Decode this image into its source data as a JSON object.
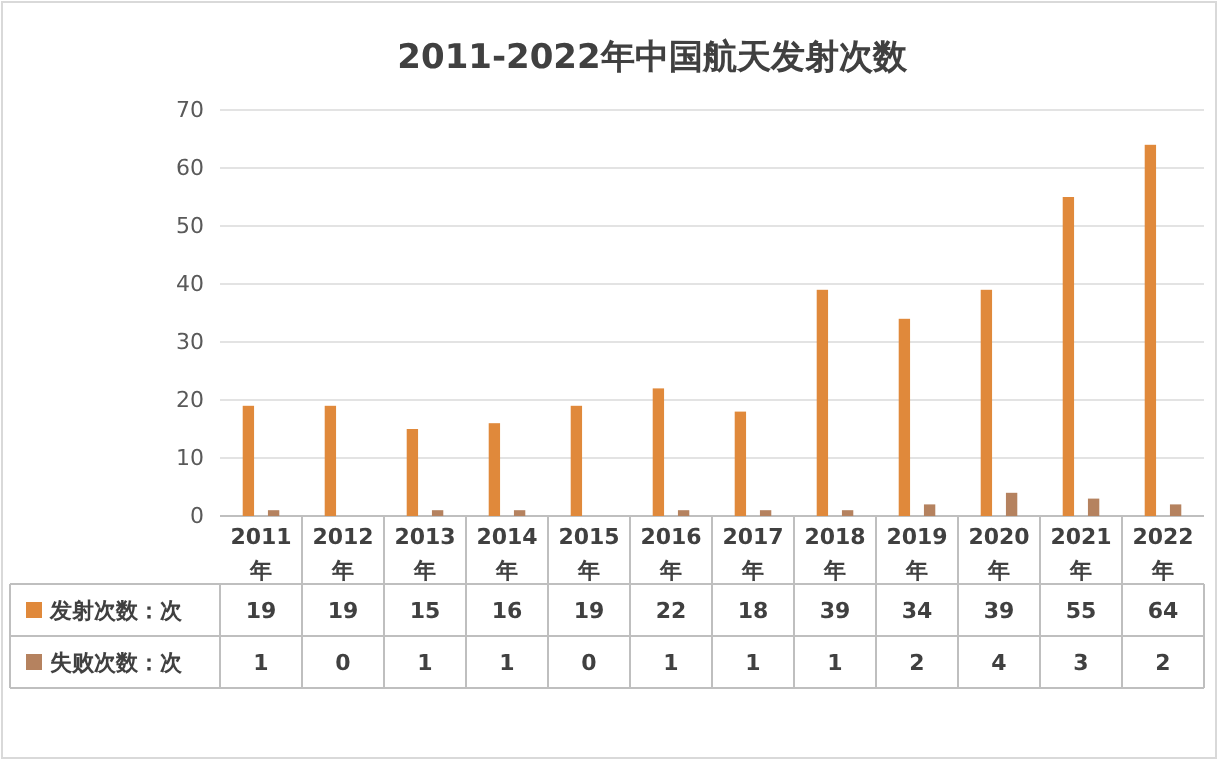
{
  "chart_data": {
    "type": "bar",
    "title": "2011-2022年中国航天发射次数",
    "categories": [
      "2011年",
      "2012年",
      "2013年",
      "2014年",
      "2015年",
      "2016年",
      "2017年",
      "2018年",
      "2019年",
      "2020年",
      "2021年",
      "2022年"
    ],
    "series": [
      {
        "name": "发射次数：次",
        "color": "#e0893b",
        "values": [
          19,
          19,
          15,
          16,
          19,
          22,
          18,
          39,
          34,
          39,
          55,
          64
        ]
      },
      {
        "name": "失败次数：次",
        "color": "#b5825f",
        "values": [
          1,
          0,
          1,
          1,
          0,
          1,
          1,
          1,
          2,
          4,
          3,
          2
        ]
      }
    ],
    "ylim": [
      0,
      70
    ],
    "yticks": [
      0,
      10,
      20,
      30,
      40,
      50,
      60,
      70
    ],
    "grid": "y",
    "legend": "bottom",
    "data_labels": true
  }
}
